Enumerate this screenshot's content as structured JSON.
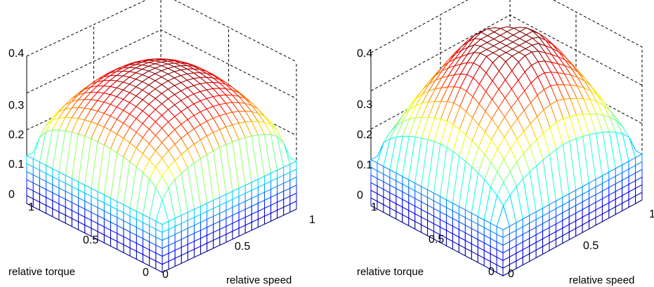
{
  "chart_data": [
    {
      "type": "surface",
      "title": "",
      "xlabel": "relative speed",
      "ylabel": "relative torque",
      "zlabel": "",
      "xlim": [
        0,
        1
      ],
      "ylim": [
        0,
        1
      ],
      "zlim": [
        0,
        0.4
      ],
      "x_ticks": [
        "0",
        "0.5",
        "1"
      ],
      "y_ticks": [
        "0",
        "0.5",
        "1"
      ],
      "z_ticks": [
        "0",
        "0.1",
        "0.2",
        "0.3",
        "0.4"
      ],
      "grid": true,
      "colormap": "jet",
      "peak_z": 0.36,
      "edge_z": 0.13,
      "grid_size": 21
    },
    {
      "type": "surface",
      "title": "",
      "xlabel": "relative speed",
      "ylabel": "relative torque",
      "zlabel": "",
      "xlim": [
        0,
        1
      ],
      "ylim": [
        0,
        1
      ],
      "zlim": [
        0,
        0.4
      ],
      "x_ticks": [
        "0",
        "0.5",
        "1"
      ],
      "y_ticks": [
        "0",
        "0.5",
        "1"
      ],
      "z_ticks": [
        "0",
        "0.1",
        "0.2",
        "0.3",
        "0.4"
      ],
      "grid": true,
      "colormap": "jet",
      "peak_z": 0.42,
      "edge_z": 0.12,
      "grid_size": 21
    }
  ]
}
